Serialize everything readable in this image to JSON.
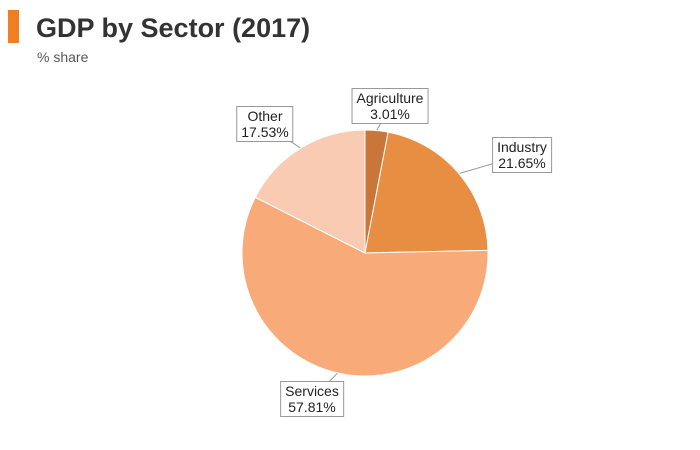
{
  "header": {
    "title": "GDP by Sector (2017)",
    "subtitle": "% share",
    "accent_color": "#f07e22"
  },
  "chart_data": {
    "type": "pie",
    "title": "GDP by Sector (2017)",
    "subtitle": "% share",
    "slices": [
      {
        "label": "Agriculture",
        "value": 3.01,
        "value_label": "3.01%",
        "color": "#c8763a"
      },
      {
        "label": "Industry",
        "value": 21.65,
        "value_label": "21.65%",
        "color": "#e88e42"
      },
      {
        "label": "Services",
        "value": 57.81,
        "value_label": "57.81%",
        "color": "#f8ab78"
      },
      {
        "label": "Other",
        "value": 17.53,
        "value_label": "17.53%",
        "color": "#f9cbb2"
      }
    ],
    "start_angle": "12 o'clock, clockwise",
    "legend": "none (callout labels)"
  }
}
